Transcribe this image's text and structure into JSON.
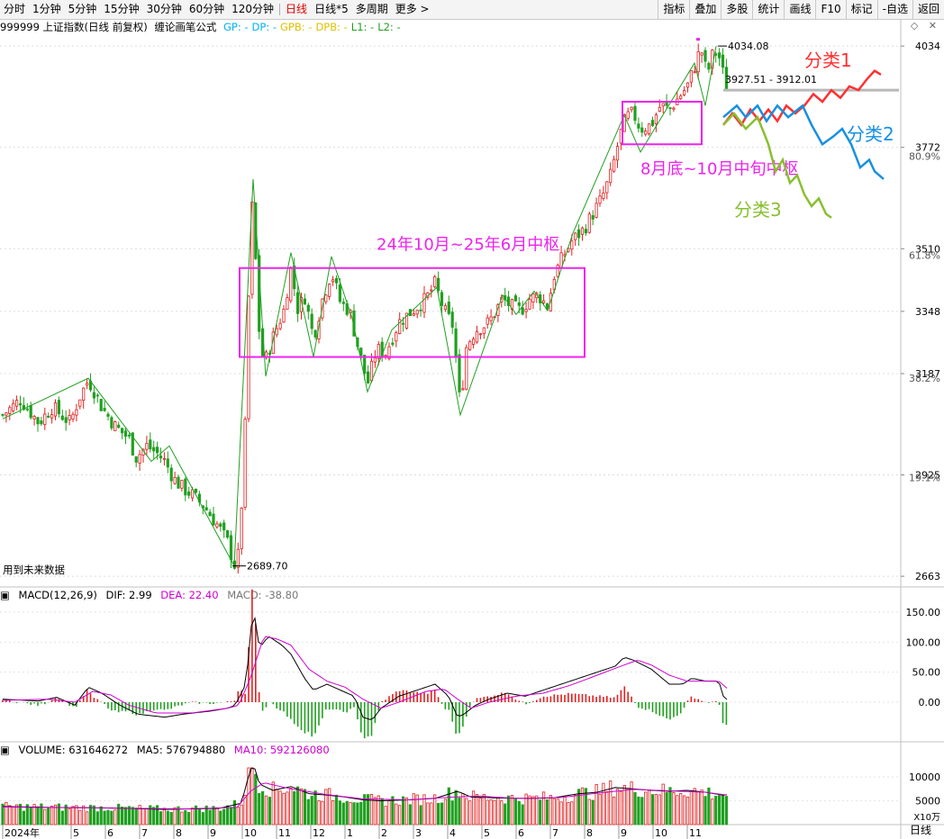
{
  "toolbar": {
    "periods": [
      "分时",
      "1分钟",
      "5分钟",
      "15分钟",
      "30分钟",
      "60分钟",
      "120分钟",
      "日线",
      "日线*5",
      "多周期",
      "更多 >"
    ],
    "active_period": "日线",
    "tools": [
      "指标",
      "叠加",
      "多股",
      "统计",
      "画线",
      "F10",
      "标记",
      "-自选",
      "返回"
    ]
  },
  "header": {
    "title": "999999 上证指数(日线 前复权)",
    "formula": "缠论画笔公式",
    "params": [
      {
        "label": "GP: -",
        "color": "#00b0f0"
      },
      {
        "label": "DP: -",
        "color": "#00b0f0"
      },
      {
        "label": "GPB: -",
        "color": "#e0c000"
      },
      {
        "label": "DPB: -",
        "color": "#e0c000"
      },
      {
        "label": "L1: -",
        "color": "#22a022"
      },
      {
        "label": "L2: -",
        "color": "#22a022"
      }
    ]
  },
  "window_icons": [
    "◇",
    "✕"
  ],
  "future_note": "用到未来数据",
  "period_label": "日线",
  "macd_header": {
    "name": "MACD(12,26,9)",
    "dif": "DIF: 2.99",
    "dea": "DEA: 22.40",
    "macd": "MACD: -38.80",
    "dif_color": "#000000",
    "dea_color": "#d000d0"
  },
  "volume_header": {
    "name": "VOLUME: 631646272",
    "ma5": "MA5: 576794880",
    "ma10": "MA10: 592126080",
    "ma5_color": "#000000",
    "ma10_color": "#d000d0"
  },
  "colors": {
    "up": "#e02020",
    "down": "#20a020",
    "bi": "#20a020",
    "box": "#ee22ee"
  },
  "chart_data": {
    "type": "line",
    "price_axis": {
      "ticks": [
        4034,
        3772,
        3510,
        3348,
        3187,
        2925,
        2663
      ],
      "pct_labels": [
        "80.9%",
        "61.8%",
        "38.2%",
        "19.1%"
      ],
      "pct_values": [
        80.9,
        61.8,
        38.2,
        19.1
      ],
      "pct_base": 2689.7,
      "pct_top": 4034.08,
      "range": [
        2640,
        4060
      ]
    },
    "x_axis": {
      "labels": [
        "2024年",
        "5",
        "6",
        "7",
        "8",
        "9",
        "10",
        "11",
        "12",
        "1",
        "2",
        "3",
        "4",
        "5",
        "6",
        "7",
        "8",
        "9",
        "10",
        "11"
      ],
      "label_days": [
        0,
        76,
        114,
        152,
        190,
        228,
        266,
        304,
        342,
        380,
        418,
        456,
        494,
        532,
        570,
        608,
        646,
        684,
        722,
        760
      ],
      "range": [
        0,
        800
      ]
    },
    "close_anchors": [
      [
        0,
        3080
      ],
      [
        20,
        3120
      ],
      [
        40,
        3060
      ],
      [
        55,
        3100
      ],
      [
        75,
        3060
      ],
      [
        85,
        3125
      ],
      [
        95,
        3170
      ],
      [
        100,
        3150
      ],
      [
        110,
        3100
      ],
      [
        125,
        3050
      ],
      [
        140,
        3020
      ],
      [
        148,
        2970
      ],
      [
        160,
        3000
      ],
      [
        172,
        2980
      ],
      [
        180,
        2960
      ],
      [
        190,
        2915
      ],
      [
        200,
        2890
      ],
      [
        210,
        2875
      ],
      [
        225,
        2840
      ],
      [
        240,
        2790
      ],
      [
        250,
        2750
      ],
      [
        257,
        2690
      ],
      [
        262,
        2720
      ],
      [
        266,
        2880
      ],
      [
        270,
        3100
      ],
      [
        274,
        3480
      ],
      [
        278,
        3670
      ],
      [
        283,
        3330
      ],
      [
        290,
        3210
      ],
      [
        300,
        3280
      ],
      [
        312,
        3350
      ],
      [
        320,
        3460
      ],
      [
        328,
        3350
      ],
      [
        335,
        3390
      ],
      [
        345,
        3280
      ],
      [
        355,
        3380
      ],
      [
        365,
        3450
      ],
      [
        375,
        3370
      ],
      [
        385,
        3350
      ],
      [
        395,
        3250
      ],
      [
        405,
        3160
      ],
      [
        415,
        3250
      ],
      [
        425,
        3240
      ],
      [
        440,
        3320
      ],
      [
        455,
        3350
      ],
      [
        470,
        3380
      ],
      [
        480,
        3420
      ],
      [
        490,
        3350
      ],
      [
        500,
        3310
      ],
      [
        508,
        3100
      ],
      [
        515,
        3260
      ],
      [
        525,
        3300
      ],
      [
        540,
        3320
      ],
      [
        555,
        3380
      ],
      [
        565,
        3360
      ],
      [
        575,
        3350
      ],
      [
        585,
        3380
      ],
      [
        595,
        3390
      ],
      [
        605,
        3360
      ],
      [
        612,
        3440
      ],
      [
        622,
        3490
      ],
      [
        632,
        3530
      ],
      [
        645,
        3560
      ],
      [
        655,
        3600
      ],
      [
        665,
        3640
      ],
      [
        675,
        3700
      ],
      [
        685,
        3800
      ],
      [
        692,
        3850
      ],
      [
        700,
        3860
      ],
      [
        708,
        3820
      ],
      [
        720,
        3830
      ],
      [
        730,
        3880
      ],
      [
        740,
        3870
      ],
      [
        750,
        3900
      ],
      [
        760,
        3930
      ],
      [
        768,
        3980
      ],
      [
        775,
        4030
      ],
      [
        782,
        3960
      ],
      [
        788,
        4010
      ],
      [
        794,
        4020
      ],
      [
        800,
        3960
      ],
      [
        805,
        3915
      ]
    ],
    "bi_points": [
      [
        0,
        3070
      ],
      [
        95,
        3175
      ],
      [
        165,
        2960
      ],
      [
        185,
        3000
      ],
      [
        257,
        2690
      ],
      [
        278,
        3690
      ],
      [
        292,
        3180
      ],
      [
        320,
        3500
      ],
      [
        345,
        3230
      ],
      [
        365,
        3490
      ],
      [
        388,
        3330
      ],
      [
        405,
        3140
      ],
      [
        432,
        3300
      ],
      [
        482,
        3410
      ],
      [
        508,
        3080
      ],
      [
        555,
        3390
      ],
      [
        570,
        3340
      ],
      [
        590,
        3400
      ],
      [
        605,
        3350
      ],
      [
        633,
        3550
      ],
      [
        690,
        3855
      ],
      [
        708,
        3760
      ],
      [
        768,
        3990
      ],
      [
        780,
        3880
      ],
      [
        792,
        4034
      ]
    ],
    "markers": [
      {
        "label": "2689.70",
        "x": 257,
        "y": 2689.7
      },
      {
        "label": "4034.08",
        "x": 792,
        "y": 4034.08
      }
    ],
    "range_label": "3927.51 - 3912.01",
    "hline_y": 3920,
    "boxes": [
      {
        "x1": 263,
        "x2": 646,
        "y1": 3230,
        "y2": 3460,
        "label": "24年10月~25年6月中枢"
      },
      {
        "x1": 688,
        "x2": 776,
        "y1": 3780,
        "y2": 3890,
        "label": "8月底~10月中旬中枢"
      }
    ],
    "scenarios": [
      {
        "name": "分类1",
        "color": "#ff3030",
        "points": [
          [
            800,
            3830
          ],
          [
            810,
            3860
          ],
          [
            820,
            3830
          ],
          [
            830,
            3870
          ],
          [
            840,
            3840
          ],
          [
            850,
            3870
          ],
          [
            860,
            3840
          ],
          [
            870,
            3880
          ],
          [
            880,
            3860
          ],
          [
            890,
            3880
          ],
          [
            900,
            3910
          ],
          [
            910,
            3890
          ],
          [
            920,
            3920
          ],
          [
            930,
            3900
          ],
          [
            940,
            3930
          ],
          [
            950,
            3920
          ],
          [
            960,
            3950
          ],
          [
            968,
            3970
          ],
          [
            975,
            3960
          ]
        ]
      },
      {
        "name": "分类2",
        "color": "#1890e0",
        "points": [
          [
            800,
            3850
          ],
          [
            815,
            3880
          ],
          [
            825,
            3850
          ],
          [
            838,
            3880
          ],
          [
            848,
            3840
          ],
          [
            860,
            3880
          ],
          [
            872,
            3850
          ],
          [
            888,
            3880
          ],
          [
            898,
            3830
          ],
          [
            910,
            3780
          ],
          [
            922,
            3800
          ],
          [
            932,
            3820
          ],
          [
            942,
            3780
          ],
          [
            952,
            3720
          ],
          [
            962,
            3740
          ],
          [
            968,
            3710
          ],
          [
            978,
            3690
          ]
        ]
      },
      {
        "name": "分类3",
        "color": "#88c030",
        "points": [
          [
            800,
            3830
          ],
          [
            812,
            3860
          ],
          [
            825,
            3820
          ],
          [
            838,
            3850
          ],
          [
            845,
            3810
          ],
          [
            850,
            3780
          ],
          [
            858,
            3710
          ],
          [
            866,
            3740
          ],
          [
            874,
            3680
          ],
          [
            882,
            3700
          ],
          [
            890,
            3650
          ],
          [
            898,
            3620
          ],
          [
            906,
            3640
          ],
          [
            914,
            3600
          ],
          [
            920,
            3590
          ]
        ]
      }
    ],
    "macd_axis": {
      "ticks": [
        150,
        100,
        50,
        0
      ],
      "range": [
        -60,
        165
      ]
    },
    "macd_anchors": [
      [
        0,
        5
      ],
      [
        40,
        2
      ],
      [
        60,
        8
      ],
      [
        80,
        -5
      ],
      [
        95,
        25
      ],
      [
        110,
        15
      ],
      [
        130,
        -5
      ],
      [
        150,
        -20
      ],
      [
        180,
        -25
      ],
      [
        200,
        -20
      ],
      [
        230,
        -15
      ],
      [
        250,
        -10
      ],
      [
        258,
        -5
      ],
      [
        270,
        30
      ],
      [
        278,
        160
      ],
      [
        285,
        90
      ],
      [
        295,
        110
      ],
      [
        310,
        95
      ],
      [
        320,
        80
      ],
      [
        335,
        40
      ],
      [
        345,
        20
      ],
      [
        360,
        30
      ],
      [
        375,
        20
      ],
      [
        390,
        10
      ],
      [
        400,
        -25
      ],
      [
        410,
        -30
      ],
      [
        420,
        -10
      ],
      [
        440,
        10
      ],
      [
        460,
        20
      ],
      [
        480,
        30
      ],
      [
        495,
        10
      ],
      [
        505,
        -25
      ],
      [
        512,
        -20
      ],
      [
        525,
        -5
      ],
      [
        540,
        5
      ],
      [
        560,
        15
      ],
      [
        580,
        10
      ],
      [
        600,
        20
      ],
      [
        620,
        30
      ],
      [
        640,
        40
      ],
      [
        660,
        50
      ],
      [
        680,
        60
      ],
      [
        690,
        75
      ],
      [
        700,
        70
      ],
      [
        720,
        55
      ],
      [
        740,
        30
      ],
      [
        755,
        30
      ],
      [
        765,
        40
      ],
      [
        780,
        35
      ],
      [
        795,
        35
      ],
      [
        800,
        10
      ],
      [
        805,
        3
      ]
    ],
    "dea_anchors": [
      [
        0,
        3
      ],
      [
        50,
        5
      ],
      [
        80,
        0
      ],
      [
        100,
        18
      ],
      [
        120,
        12
      ],
      [
        140,
        -5
      ],
      [
        170,
        -18
      ],
      [
        210,
        -18
      ],
      [
        250,
        -10
      ],
      [
        262,
        -5
      ],
      [
        275,
        40
      ],
      [
        290,
        110
      ],
      [
        305,
        105
      ],
      [
        320,
        95
      ],
      [
        340,
        55
      ],
      [
        360,
        35
      ],
      [
        380,
        25
      ],
      [
        400,
        5
      ],
      [
        420,
        -10
      ],
      [
        440,
        0
      ],
      [
        470,
        18
      ],
      [
        490,
        22
      ],
      [
        505,
        5
      ],
      [
        520,
        -10
      ],
      [
        540,
        0
      ],
      [
        570,
        10
      ],
      [
        600,
        15
      ],
      [
        630,
        28
      ],
      [
        660,
        45
      ],
      [
        690,
        62
      ],
      [
        705,
        70
      ],
      [
        720,
        62
      ],
      [
        740,
        45
      ],
      [
        760,
        35
      ],
      [
        780,
        35
      ],
      [
        795,
        35
      ],
      [
        805,
        22
      ]
    ],
    "volume_axis": {
      "ticks": [
        10000,
        5000
      ],
      "unit": "X10万",
      "range": [
        0,
        14000
      ]
    },
    "volume_anchors": [
      [
        0,
        3800
      ],
      [
        60,
        3600
      ],
      [
        120,
        3500
      ],
      [
        180,
        3200
      ],
      [
        240,
        3400
      ],
      [
        265,
        4500
      ],
      [
        272,
        9500
      ],
      [
        278,
        13000
      ],
      [
        285,
        8500
      ],
      [
        300,
        7200
      ],
      [
        320,
        8000
      ],
      [
        340,
        6500
      ],
      [
        360,
        6200
      ],
      [
        380,
        5800
      ],
      [
        400,
        5200
      ],
      [
        420,
        5000
      ],
      [
        450,
        5200
      ],
      [
        480,
        5500
      ],
      [
        505,
        7000
      ],
      [
        520,
        5800
      ],
      [
        550,
        5600
      ],
      [
        580,
        5500
      ],
      [
        610,
        5600
      ],
      [
        640,
        6500
      ],
      [
        660,
        6800
      ],
      [
        680,
        7800
      ],
      [
        700,
        7500
      ],
      [
        720,
        7200
      ],
      [
        740,
        7000
      ],
      [
        760,
        7200
      ],
      [
        780,
        6800
      ],
      [
        800,
        6200
      ],
      [
        805,
        6300
      ]
    ],
    "ma10_anchors": [
      [
        0,
        3700
      ],
      [
        100,
        3500
      ],
      [
        200,
        3300
      ],
      [
        260,
        3600
      ],
      [
        275,
        7000
      ],
      [
        290,
        8800
      ],
      [
        320,
        7500
      ],
      [
        360,
        6300
      ],
      [
        400,
        5400
      ],
      [
        450,
        5200
      ],
      [
        500,
        5800
      ],
      [
        530,
        6000
      ],
      [
        570,
        5500
      ],
      [
        620,
        5700
      ],
      [
        660,
        6600
      ],
      [
        700,
        7400
      ],
      [
        740,
        7100
      ],
      [
        780,
        6800
      ],
      [
        805,
        6200
      ]
    ]
  }
}
